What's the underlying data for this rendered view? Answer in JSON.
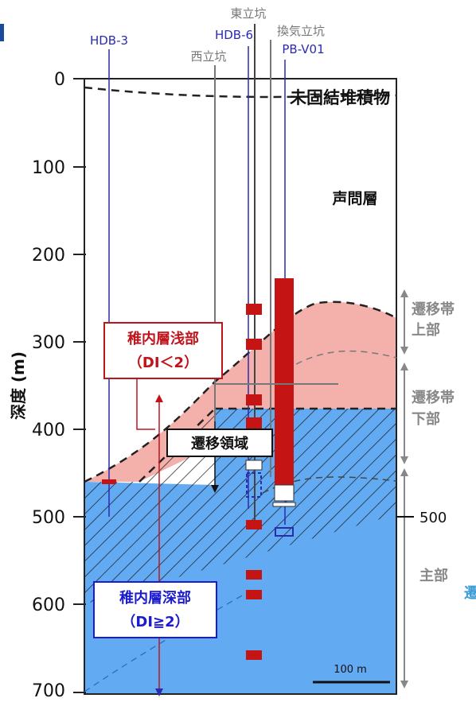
{
  "diagram": {
    "depth_axis": {
      "label": "深度 (m)",
      "ticks": [
        "0",
        "100",
        "200",
        "300",
        "400",
        "500",
        "600",
        "700"
      ]
    },
    "boreholes": [
      {
        "name": "HDB-3",
        "color": "#2b2bb0"
      },
      {
        "name": "西立坑",
        "color": "#777777"
      },
      {
        "name": "HDB-6",
        "color": "#2b2bb0"
      },
      {
        "name": "東立坑",
        "color": "#777777"
      },
      {
        "name": "換気立坑",
        "color": "#777777"
      },
      {
        "name": "PB-V01",
        "color": "#2b2bb0"
      }
    ],
    "layers": {
      "unconsolidated": "未固結堆積物",
      "koetoi": "声問層"
    },
    "zones": {
      "shallow_title": "稚内層浅部",
      "shallow_sub": "（DI＜2）",
      "transition": "遷移領域",
      "deep_title": "稚内層深部",
      "deep_sub": "（DI≧2）"
    },
    "right_labels": {
      "upper_1": "遷移帯",
      "upper_2": "上部",
      "lower_1": "遷移帯",
      "lower_2": "下部",
      "main": "主部",
      "depth_500": "500",
      "edge_char": "遷"
    },
    "scale_bar": "100 m",
    "colors": {
      "shallow_fill": "#f4b0ab",
      "deep_fill": "#62aaf2",
      "core_red": "#c41414",
      "borehole_blue": "#2b2bb0",
      "shaft_gray": "#777777",
      "shallow_text": "#c0141c",
      "deep_text": "#1b1bd0"
    }
  }
}
